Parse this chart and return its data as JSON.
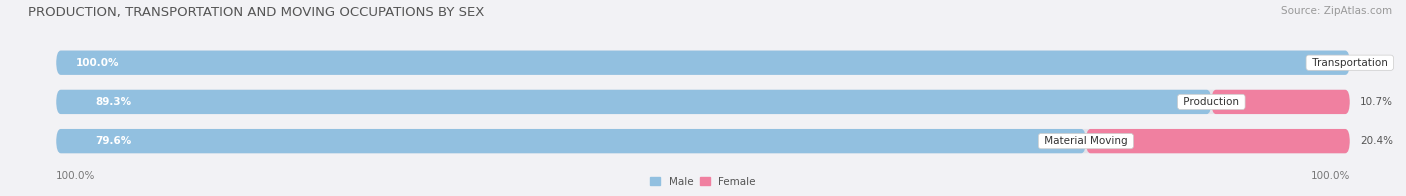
{
  "title": "PRODUCTION, TRANSPORTATION AND MOVING OCCUPATIONS BY SEX",
  "source": "Source: ZipAtlas.com",
  "categories": [
    "Transportation",
    "Production",
    "Material Moving"
  ],
  "male_pct": [
    100.0,
    89.3,
    79.6
  ],
  "female_pct": [
    0.0,
    10.7,
    20.4
  ],
  "male_color": "#92C0E0",
  "female_color": "#F080A0",
  "bar_bg_color": "#E4E4EA",
  "male_label": "Male",
  "female_label": "Female",
  "title_fontsize": 9.5,
  "source_fontsize": 7.5,
  "label_fontsize": 7.5,
  "axis_label_fontsize": 7.5,
  "bar_height": 0.62,
  "figsize": [
    14.06,
    1.96
  ],
  "dpi": 100,
  "background_color": "#F2F2F5"
}
